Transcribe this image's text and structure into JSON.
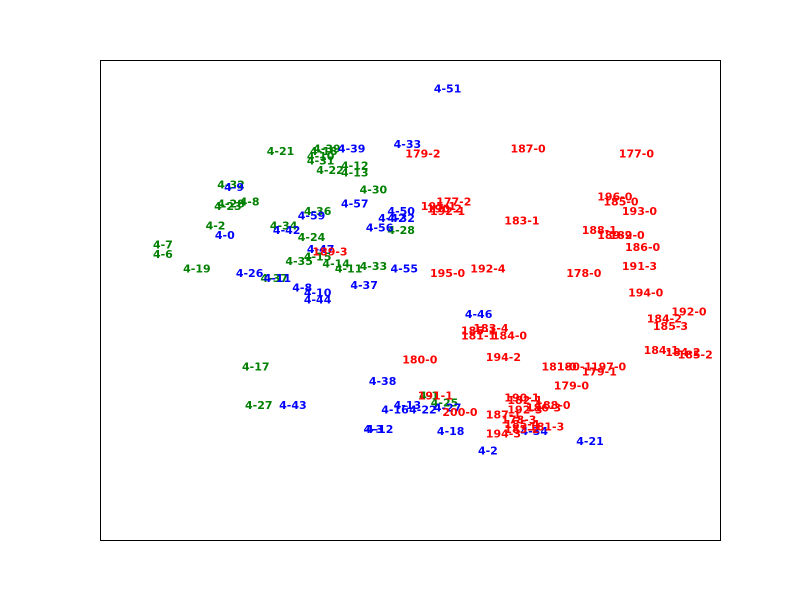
{
  "chart_data": {
    "type": "scatter",
    "title": "",
    "xlabel": "",
    "ylabel": "",
    "xlim": [
      0,
      100
    ],
    "ylim": [
      0,
      100
    ],
    "axes_visible": false,
    "grid": false,
    "legend": "none",
    "series": [
      {
        "color": "#008000",
        "points": [
          {
            "label": "4-21",
            "x": 29,
            "y": 81
          },
          {
            "label": "4-18",
            "x": 36,
            "y": 81
          },
          {
            "label": "4-10",
            "x": 35.5,
            "y": 80
          },
          {
            "label": "4-39",
            "x": 36.5,
            "y": 81.5
          },
          {
            "label": "4-31",
            "x": 35.5,
            "y": 79
          },
          {
            "label": "4-12",
            "x": 41,
            "y": 78
          },
          {
            "label": "4-22",
            "x": 37,
            "y": 77
          },
          {
            "label": "4-13",
            "x": 41,
            "y": 76.5
          },
          {
            "label": "4-32",
            "x": 21,
            "y": 74
          },
          {
            "label": "4-30",
            "x": 44,
            "y": 73
          },
          {
            "label": "4-8",
            "x": 24,
            "y": 70.5
          },
          {
            "label": "4-28",
            "x": 21,
            "y": 70
          },
          {
            "label": "4-23",
            "x": 20.5,
            "y": 69.5
          },
          {
            "label": "4-36",
            "x": 35,
            "y": 68.5
          },
          {
            "label": "4-34",
            "x": 29.5,
            "y": 65.5
          },
          {
            "label": "4-2",
            "x": 18.5,
            "y": 65.5
          },
          {
            "label": "4-28",
            "x": 48.5,
            "y": 64.5
          },
          {
            "label": "4-24",
            "x": 34,
            "y": 63
          },
          {
            "label": "4-7",
            "x": 10,
            "y": 61.5
          },
          {
            "label": "4-6",
            "x": 10,
            "y": 59.5
          },
          {
            "label": "4-15",
            "x": 35,
            "y": 59
          },
          {
            "label": "4-35",
            "x": 32,
            "y": 58
          },
          {
            "label": "4-14",
            "x": 38,
            "y": 57.5
          },
          {
            "label": "4-33",
            "x": 44,
            "y": 57
          },
          {
            "label": "4-11",
            "x": 40,
            "y": 56.5
          },
          {
            "label": "4-19",
            "x": 15.5,
            "y": 56.5
          },
          {
            "label": "4-37",
            "x": 28,
            "y": 54.5
          },
          {
            "label": "4-17",
            "x": 25,
            "y": 36
          },
          {
            "label": "4-27",
            "x": 25.5,
            "y": 28
          },
          {
            "label": "4-1",
            "x": 53,
            "y": 30
          },
          {
            "label": "4-25",
            "x": 55.5,
            "y": 28.5
          }
        ]
      },
      {
        "color": "#0000ff",
        "points": [
          {
            "label": "4-51",
            "x": 56,
            "y": 94
          },
          {
            "label": "4-39",
            "x": 40.5,
            "y": 81.5
          },
          {
            "label": "4-33",
            "x": 49.5,
            "y": 82.5
          },
          {
            "label": "4-9",
            "x": 21.5,
            "y": 73.5
          },
          {
            "label": "4-57",
            "x": 41,
            "y": 70
          },
          {
            "label": "4-50",
            "x": 48.5,
            "y": 68.5
          },
          {
            "label": "4-59",
            "x": 34,
            "y": 67.5
          },
          {
            "label": "4-42",
            "x": 47,
            "y": 67
          },
          {
            "label": "4-32",
            "x": 48.5,
            "y": 67
          },
          {
            "label": "4-56",
            "x": 45,
            "y": 65
          },
          {
            "label": "4-42",
            "x": 30,
            "y": 64.5
          },
          {
            "label": "4-0",
            "x": 20,
            "y": 63.5
          },
          {
            "label": "4-47",
            "x": 35.5,
            "y": 60.5
          },
          {
            "label": "4-55",
            "x": 49,
            "y": 56.5
          },
          {
            "label": "4-26",
            "x": 24,
            "y": 55.5
          },
          {
            "label": "4-11",
            "x": 28.5,
            "y": 54.5
          },
          {
            "label": "4-37",
            "x": 42.5,
            "y": 53
          },
          {
            "label": "4-8",
            "x": 32.5,
            "y": 52.5
          },
          {
            "label": "4-10",
            "x": 35,
            "y": 51.5
          },
          {
            "label": "4-44",
            "x": 35,
            "y": 50
          },
          {
            "label": "4-46",
            "x": 61,
            "y": 47
          },
          {
            "label": "4-38",
            "x": 45.5,
            "y": 33
          },
          {
            "label": "4-43",
            "x": 31,
            "y": 28
          },
          {
            "label": "4-13",
            "x": 49.5,
            "y": 28
          },
          {
            "label": "4-16",
            "x": 47.5,
            "y": 27
          },
          {
            "label": "4-22",
            "x": 52,
            "y": 27
          },
          {
            "label": "4-27",
            "x": 56,
            "y": 27.5
          },
          {
            "label": "4-3",
            "x": 44,
            "y": 23
          },
          {
            "label": "4-12",
            "x": 45,
            "y": 23
          },
          {
            "label": "4-18",
            "x": 56.5,
            "y": 22.5
          },
          {
            "label": "4-34",
            "x": 70,
            "y": 22.5
          },
          {
            "label": "4-21",
            "x": 79,
            "y": 20.5
          },
          {
            "label": "4-2",
            "x": 62.5,
            "y": 18.5
          }
        ]
      },
      {
        "color": "#ff0000",
        "points": [
          {
            "label": "187-0",
            "x": 69,
            "y": 81.5
          },
          {
            "label": "179-2",
            "x": 52,
            "y": 80.5
          },
          {
            "label": "177-0",
            "x": 86.5,
            "y": 80.5
          },
          {
            "label": "196-0",
            "x": 83,
            "y": 71.5
          },
          {
            "label": "185-0",
            "x": 84,
            "y": 70.5
          },
          {
            "label": "177-2",
            "x": 57,
            "y": 70.5
          },
          {
            "label": "195-1",
            "x": 54.5,
            "y": 69.5
          },
          {
            "label": "190-2",
            "x": 55.5,
            "y": 69
          },
          {
            "label": "192-1",
            "x": 56,
            "y": 68.5
          },
          {
            "label": "193-0",
            "x": 87,
            "y": 68.5
          },
          {
            "label": "183-1",
            "x": 68,
            "y": 66.5
          },
          {
            "label": "188-1",
            "x": 80.5,
            "y": 64.5
          },
          {
            "label": "189-2",
            "x": 83,
            "y": 63.5
          },
          {
            "label": "189-0",
            "x": 85,
            "y": 63.5
          },
          {
            "label": "186-0",
            "x": 87.5,
            "y": 61
          },
          {
            "label": "189-3",
            "x": 37,
            "y": 60
          },
          {
            "label": "192-4",
            "x": 62.5,
            "y": 56.5
          },
          {
            "label": "195-0",
            "x": 56,
            "y": 55.5
          },
          {
            "label": "191-3",
            "x": 87,
            "y": 57
          },
          {
            "label": "178-0",
            "x": 78,
            "y": 55.5
          },
          {
            "label": "194-0",
            "x": 88,
            "y": 51.5
          },
          {
            "label": "192-0",
            "x": 95,
            "y": 47.5
          },
          {
            "label": "184-2",
            "x": 91,
            "y": 46
          },
          {
            "label": "185-3",
            "x": 92,
            "y": 44.5
          },
          {
            "label": "183-4",
            "x": 63,
            "y": 44
          },
          {
            "label": "185-1",
            "x": 61,
            "y": 43.5
          },
          {
            "label": "181-1",
            "x": 61,
            "y": 42.5
          },
          {
            "label": "184-0",
            "x": 66,
            "y": 42.5
          },
          {
            "label": "184-1",
            "x": 90.5,
            "y": 39.5
          },
          {
            "label": "184-2",
            "x": 94,
            "y": 39
          },
          {
            "label": "185-2",
            "x": 96,
            "y": 38.5
          },
          {
            "label": "180-0",
            "x": 51.5,
            "y": 37.5
          },
          {
            "label": "194-2",
            "x": 65,
            "y": 38
          },
          {
            "label": "181-0",
            "x": 74,
            "y": 36
          },
          {
            "label": "180-1",
            "x": 76.5,
            "y": 36
          },
          {
            "label": "179-1",
            "x": 80.5,
            "y": 35
          },
          {
            "label": "197-0",
            "x": 82,
            "y": 36
          },
          {
            "label": "179-0",
            "x": 76,
            "y": 32
          },
          {
            "label": "191-1",
            "x": 54,
            "y": 30
          },
          {
            "label": "190-1",
            "x": 68,
            "y": 29.5
          },
          {
            "label": "182-1",
            "x": 68.5,
            "y": 29
          },
          {
            "label": "188-0",
            "x": 73,
            "y": 28
          },
          {
            "label": "186-3",
            "x": 71.5,
            "y": 27.5
          },
          {
            "label": "192-3",
            "x": 68.5,
            "y": 27
          },
          {
            "label": "200-0",
            "x": 58,
            "y": 26.5
          },
          {
            "label": "187-1",
            "x": 65,
            "y": 26
          },
          {
            "label": "178-3",
            "x": 67.5,
            "y": 25
          },
          {
            "label": "181-3",
            "x": 72,
            "y": 23.5
          },
          {
            "label": "185-4",
            "x": 68,
            "y": 24
          },
          {
            "label": "183-2",
            "x": 68,
            "y": 23
          },
          {
            "label": "194-3",
            "x": 65,
            "y": 22
          }
        ]
      }
    ]
  }
}
